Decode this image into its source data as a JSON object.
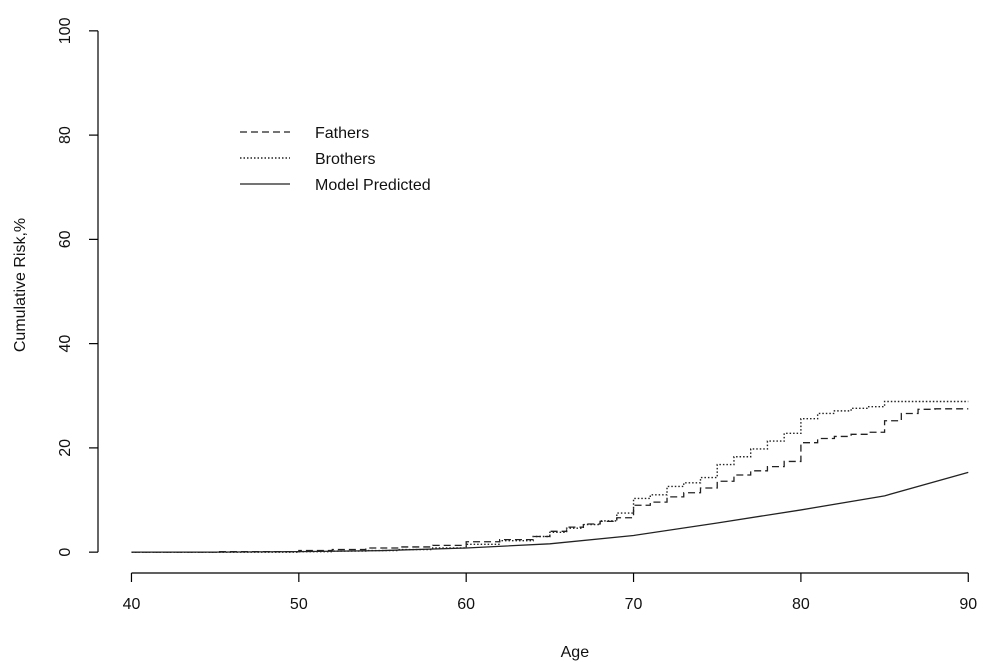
{
  "chart_data": {
    "type": "line",
    "title": "",
    "xlabel": "Age",
    "ylabel": "Cumulative Risk,%",
    "xlim": [
      38,
      91
    ],
    "ylim": [
      -4,
      104
    ],
    "xticks": [
      40,
      50,
      60,
      70,
      80,
      90
    ],
    "yticks": [
      0,
      20,
      40,
      60,
      80,
      100
    ],
    "grid": false,
    "legend_position": "upper-left",
    "series": [
      {
        "name": "Fathers",
        "style": "dashed",
        "color": "#222222",
        "step": true,
        "x": [
          40,
          45,
          50,
          52,
          54,
          56,
          58,
          60,
          62,
          64,
          65,
          66,
          67,
          68,
          69,
          70,
          71,
          72,
          73,
          74,
          75,
          76,
          77,
          78,
          79,
          80,
          81,
          82,
          83,
          84,
          85,
          86,
          87,
          88,
          89,
          90
        ],
        "y": [
          0,
          0.1,
          0.3,
          0.5,
          0.8,
          1.0,
          1.3,
          2.0,
          2.4,
          3.0,
          4.0,
          4.8,
          5.4,
          5.9,
          6.6,
          9.0,
          9.6,
          10.6,
          11.4,
          12.3,
          13.6,
          14.8,
          15.6,
          16.4,
          17.4,
          21.0,
          21.8,
          22.2,
          22.6,
          23.0,
          25.2,
          26.6,
          27.4,
          27.5,
          27.5,
          27.5
        ]
      },
      {
        "name": "Brothers",
        "style": "dotted",
        "color": "#222222",
        "step": true,
        "x": [
          40,
          45,
          50,
          52,
          54,
          56,
          58,
          60,
          62,
          64,
          65,
          66,
          67,
          68,
          69,
          70,
          71,
          72,
          73,
          74,
          75,
          76,
          77,
          78,
          79,
          80,
          81,
          82,
          83,
          84,
          85,
          86,
          87,
          88,
          89,
          90
        ],
        "y": [
          0,
          0,
          0.1,
          0.2,
          0.3,
          0.5,
          0.8,
          1.5,
          2.2,
          3.0,
          3.8,
          4.6,
          5.3,
          6.0,
          7.5,
          10.3,
          11.0,
          12.6,
          13.3,
          14.3,
          16.8,
          18.3,
          19.8,
          21.3,
          22.8,
          25.6,
          26.6,
          27.1,
          27.6,
          27.9,
          28.9,
          28.9,
          28.9,
          28.9,
          28.9,
          28.9
        ]
      },
      {
        "name": "Model Predicted",
        "style": "solid",
        "color": "#222222",
        "step": false,
        "x": [
          40,
          45,
          50,
          55,
          60,
          65,
          70,
          75,
          80,
          85,
          90
        ],
        "y": [
          0,
          0,
          0.1,
          0.3,
          0.8,
          1.6,
          3.2,
          5.6,
          8.1,
          10.8,
          15.3
        ]
      }
    ]
  }
}
